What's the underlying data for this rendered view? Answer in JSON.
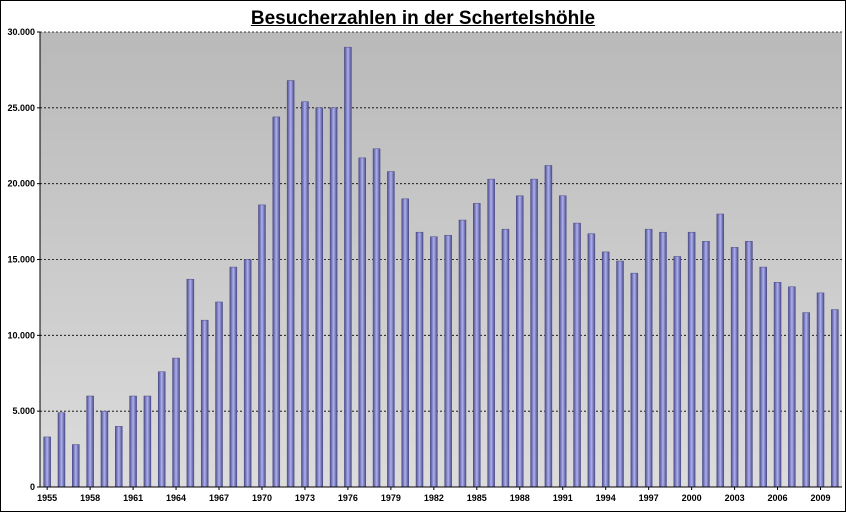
{
  "chart_data": {
    "type": "bar",
    "title": "Besucherzahlen in der Schertelshöhle",
    "xlabel": "",
    "ylabel": "",
    "ylim": [
      0,
      30000
    ],
    "yticks": [
      0,
      5000,
      10000,
      15000,
      20000,
      25000,
      30000
    ],
    "ytick_labels": [
      "0",
      "5.000",
      "10.000",
      "15.000",
      "20.000",
      "25.000",
      "30.000"
    ],
    "xtick_labels": [
      "1955",
      "1958",
      "1961",
      "1964",
      "1967",
      "1970",
      "1973",
      "1976",
      "1979",
      "1982",
      "1985",
      "1988",
      "1991",
      "1994",
      "1997",
      "2000",
      "2003",
      "2006",
      "2009"
    ],
    "grid": true,
    "legend": "none",
    "categories": [
      "1955",
      "1956",
      "1957",
      "1958",
      "1959",
      "1960",
      "1961",
      "1962",
      "1963",
      "1964",
      "1965",
      "1966",
      "1967",
      "1968",
      "1969",
      "1970",
      "1971",
      "1972",
      "1973",
      "1974",
      "1975",
      "1976",
      "1977",
      "1978",
      "1979",
      "1980",
      "1981",
      "1982",
      "1983",
      "1984",
      "1985",
      "1986",
      "1987",
      "1988",
      "1989",
      "1990",
      "1991",
      "1992",
      "1993",
      "1994",
      "1995",
      "1996",
      "1997",
      "1998",
      "1999",
      "2000",
      "2001",
      "2002",
      "2003",
      "2004",
      "2005",
      "2006",
      "2007",
      "2008",
      "2009",
      "2010"
    ],
    "values": [
      3300,
      4900,
      2800,
      6000,
      5000,
      4000,
      6000,
      6000,
      7600,
      8500,
      13700,
      11000,
      12200,
      14500,
      15000,
      18600,
      24400,
      26800,
      25400,
      25000,
      25000,
      29000,
      21700,
      22300,
      20800,
      19000,
      16800,
      16500,
      16600,
      17600,
      18700,
      20300,
      17000,
      19200,
      20300,
      21200,
      19200,
      17400,
      16700,
      15500,
      14900,
      14100,
      17000,
      16800,
      15200,
      16800,
      16200,
      18000,
      15800,
      16200,
      14500,
      13500,
      13200,
      11500,
      12800,
      11700
    ],
    "colors": {
      "bar_light": "#aeb0f2",
      "bar_dark": "#4c4c86",
      "plot_top": "#b9b9b9",
      "plot_bottom": "#dcdcdc",
      "grid": "#000000"
    }
  }
}
